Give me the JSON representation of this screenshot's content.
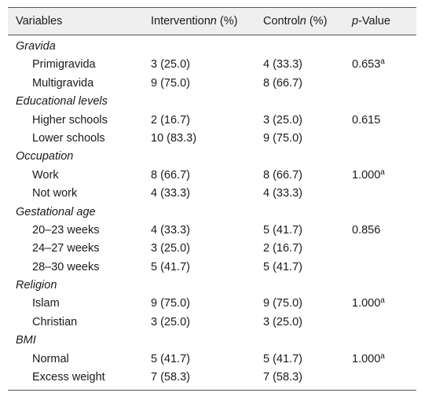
{
  "header": {
    "variables": "Variables",
    "intervention_prefix": "Intervention",
    "intervention_n": "n",
    "intervention_suffix": " (%)",
    "control_prefix": "Control",
    "control_n": "n",
    "control_suffix": " (%)",
    "pvalue_p": "p",
    "pvalue_suffix": "-Value"
  },
  "groups": [
    {
      "label": "Gravida",
      "rows": [
        {
          "label": "Primigravida",
          "intervention": "3 (25.0)",
          "control": "4 (33.3)",
          "p": "0.653",
          "sup": "a"
        },
        {
          "label": "Multigravida",
          "intervention": "9 (75.0)",
          "control": "8 (66.7)",
          "p": "",
          "sup": ""
        }
      ]
    },
    {
      "label": "Educational levels",
      "rows": [
        {
          "label": "Higher schools",
          "intervention": "2 (16.7)",
          "control": "3 (25.0)",
          "p": "0.615",
          "sup": ""
        },
        {
          "label": "Lower schools",
          "intervention": "10 (83.3)",
          "control": "9 (75.0)",
          "p": "",
          "sup": ""
        }
      ]
    },
    {
      "label": "Occupation",
      "rows": [
        {
          "label": "Work",
          "intervention": "8 (66.7)",
          "control": "8 (66.7)",
          "p": "1.000",
          "sup": "a"
        },
        {
          "label": "Not work",
          "intervention": "4 (33.3)",
          "control": "4 (33.3)",
          "p": "",
          "sup": ""
        }
      ]
    },
    {
      "label": "Gestational age",
      "rows": [
        {
          "label": "20–23 weeks",
          "intervention": "4 (33.3)",
          "control": "5 (41.7)",
          "p": "0.856",
          "sup": ""
        },
        {
          "label": "24–27 weeks",
          "intervention": "3 (25.0)",
          "control": "2 (16.7)",
          "p": "",
          "sup": ""
        },
        {
          "label": "28–30 weeks",
          "intervention": "5 (41.7)",
          "control": "5 (41.7)",
          "p": "",
          "sup": ""
        }
      ]
    },
    {
      "label": "Religion",
      "rows": [
        {
          "label": "Islam",
          "intervention": "9 (75.0)",
          "control": "9 (75.0)",
          "p": "1.000",
          "sup": "a"
        },
        {
          "label": "Christian",
          "intervention": "3 (25.0)",
          "control": "3 (25.0)",
          "p": "",
          "sup": ""
        }
      ]
    },
    {
      "label": "BMI",
      "rows": [
        {
          "label": "Normal",
          "intervention": "5 (41.7)",
          "control": "5 (41.7)",
          "p": "1.000",
          "sup": "a"
        },
        {
          "label": "Excess weight",
          "intervention": "7 (58.3)",
          "control": "7 (58.3)",
          "p": "",
          "sup": ""
        }
      ]
    }
  ]
}
